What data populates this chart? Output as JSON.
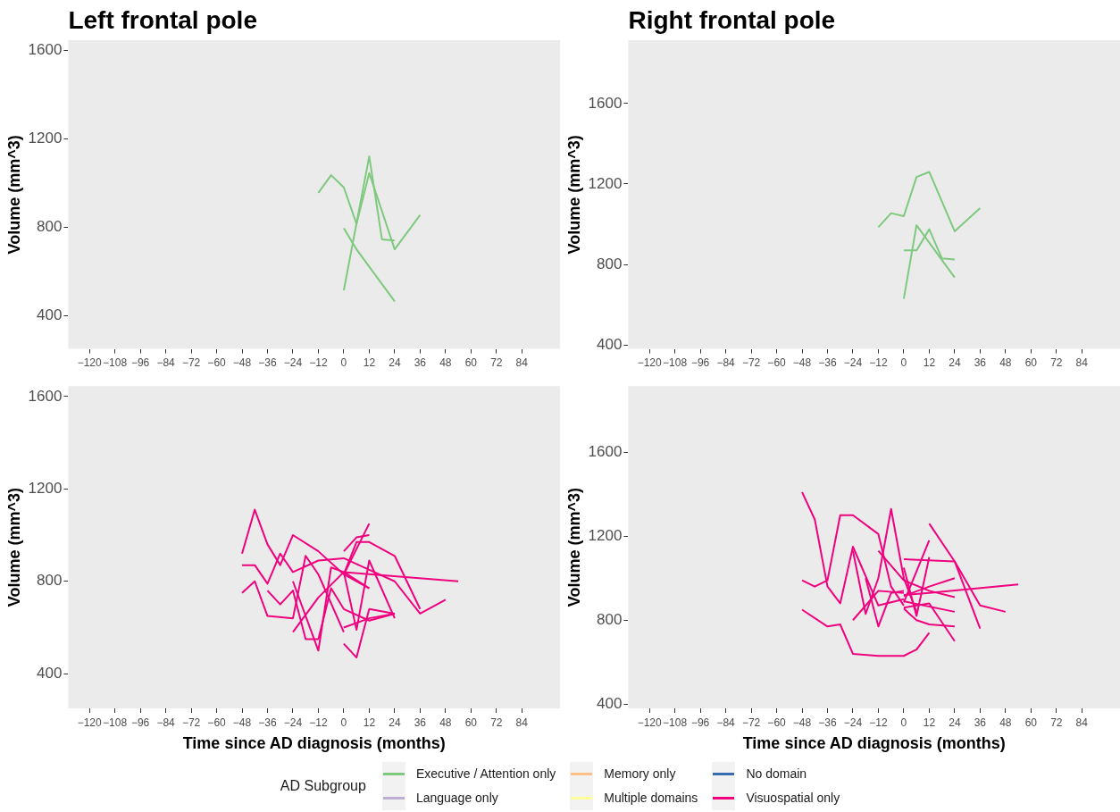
{
  "chart_data": [
    {
      "type": "line",
      "title": "Left frontal pole",
      "ylabel": "Volume (mm^3)",
      "legend": "bottom",
      "legend_title": "AD Subgroup",
      "xlim": [
        -130,
        102
      ],
      "xticks": [
        {
          "value": -120,
          "label": "−120"
        },
        {
          "value": -108,
          "label": "−108"
        },
        {
          "value": -96,
          "label": "−96"
        },
        {
          "value": -84,
          "label": "−84"
        },
        {
          "value": -72,
          "label": "−72"
        },
        {
          "value": -60,
          "label": "−60"
        },
        {
          "value": -48,
          "label": "−48"
        },
        {
          "value": -36,
          "label": "−36"
        },
        {
          "value": -24,
          "label": "−24"
        },
        {
          "value": -12,
          "label": "−12"
        },
        0,
        12,
        24,
        36,
        48,
        60,
        72,
        84
      ],
      "ylim": [
        250,
        1645
      ],
      "yticks": [
        400,
        800,
        1200,
        1600
      ],
      "series": [
        {
          "name": "Executive / Attention only",
          "color": "#7fc97f",
          "x": [
            -12,
            -6,
            0,
            6,
            12,
            24,
            36
          ],
          "values": [
            955,
            1035,
            980,
            815,
            1045,
            700,
            855
          ]
        },
        {
          "color": "#7fc97f",
          "x": [
            0,
            12,
            18,
            24
          ],
          "values": [
            515,
            1120,
            745,
            740
          ]
        },
        {
          "color": "#7fc97f",
          "x": [
            0,
            6,
            24
          ],
          "values": [
            795,
            700,
            465
          ]
        },
        {
          "name": "Language only",
          "color": "#beaed4"
        },
        {
          "name": "Memory only",
          "color": "#fdc086"
        },
        {
          "name": "Multiple domains",
          "color": "#ffff99"
        },
        {
          "name": "No domain",
          "color": "#386cb0"
        }
      ]
    },
    {
      "type": "line",
      "title": "Right frontal pole",
      "ylabel": "Volume (mm^3)",
      "xlim": [
        -130,
        102
      ],
      "xticks": [
        {
          "value": -120,
          "label": "−120"
        },
        {
          "value": -108,
          "label": "−108"
        },
        {
          "value": -96,
          "label": "−96"
        },
        {
          "value": -84,
          "label": "−84"
        },
        {
          "value": -72,
          "label": "−72"
        },
        {
          "value": -60,
          "label": "−60"
        },
        {
          "value": -48,
          "label": "−48"
        },
        {
          "value": -36,
          "label": "−36"
        },
        {
          "value": -24,
          "label": "−24"
        },
        {
          "value": -12,
          "label": "−12"
        },
        0,
        12,
        24,
        36,
        48,
        60,
        72,
        84
      ],
      "ylim": [
        380,
        1915
      ],
      "yticks": [
        400,
        800,
        1200,
        1600
      ],
      "series": [
        {
          "color": "#7fc97f",
          "x": [
            -12,
            -6,
            0,
            6,
            12,
            24,
            36
          ],
          "values": [
            985,
            1055,
            1040,
            1235,
            1260,
            965,
            1080
          ]
        },
        {
          "color": "#7fc97f",
          "x": [
            0,
            6,
            24
          ],
          "values": [
            630,
            995,
            735
          ]
        },
        {
          "color": "#7fc97f",
          "x": [
            0,
            6,
            12,
            18,
            24
          ],
          "values": [
            870,
            870,
            975,
            830,
            825
          ]
        }
      ]
    },
    {
      "type": "line",
      "xlabel": "Time since AD diagnosis (months)",
      "ylabel": "Volume (mm^3)",
      "xlim": [
        -130,
        102
      ],
      "xticks": [
        {
          "value": -120,
          "label": "−120"
        },
        {
          "value": -108,
          "label": "−108"
        },
        {
          "value": -96,
          "label": "−96"
        },
        {
          "value": -84,
          "label": "−84"
        },
        {
          "value": -72,
          "label": "−72"
        },
        {
          "value": -60,
          "label": "−60"
        },
        {
          "value": -48,
          "label": "−48"
        },
        {
          "value": -36,
          "label": "−36"
        },
        {
          "value": -24,
          "label": "−24"
        },
        {
          "value": -12,
          "label": "−12"
        },
        0,
        12,
        24,
        36,
        48,
        60,
        72,
        84
      ],
      "ylim": [
        250,
        1645
      ],
      "yticks": [
        400,
        800,
        1200,
        1600
      ],
      "series": [
        {
          "name": "Visuospatial only",
          "color": "#f0027f",
          "x": [
            -48,
            -42,
            -36,
            -30,
            -24,
            -12,
            0,
            12
          ],
          "values": [
            920,
            1110,
            960,
            870,
            1000,
            930,
            830,
            770
          ]
        },
        {
          "color": "#f0027f",
          "x": [
            -48,
            -42,
            -36,
            -30,
            -24,
            -12,
            0,
            12,
            24,
            36,
            48
          ],
          "values": [
            870,
            870,
            790,
            920,
            840,
            890,
            900,
            850,
            800,
            660,
            720
          ]
        },
        {
          "color": "#f0027f",
          "x": [
            -48,
            -42,
            -36,
            -24,
            -18,
            -12,
            0
          ],
          "values": [
            750,
            800,
            650,
            640,
            910,
            830,
            580
          ]
        },
        {
          "color": "#f0027f",
          "x": [
            -36,
            -30,
            -24,
            -18,
            -12,
            -6,
            0,
            12,
            24
          ],
          "values": [
            760,
            700,
            760,
            550,
            550,
            770,
            680,
            630,
            660
          ]
        },
        {
          "color": "#f0027f",
          "x": [
            -24,
            -12,
            -6,
            0,
            12
          ],
          "values": [
            800,
            500,
            860,
            840,
            770
          ]
        },
        {
          "color": "#f0027f",
          "x": [
            -24,
            -12,
            0
          ],
          "values": [
            580,
            730,
            840
          ]
        },
        {
          "color": "#f0027f",
          "x": [
            0,
            6,
            12
          ],
          "values": [
            930,
            990,
            1000
          ]
        },
        {
          "color": "#f0027f",
          "x": [
            0,
            6,
            12,
            24
          ],
          "values": [
            530,
            470,
            680,
            660
          ]
        },
        {
          "color": "#f0027f",
          "x": [
            0,
            12,
            24
          ],
          "values": [
            600,
            640,
            660
          ]
        },
        {
          "color": "#f0027f",
          "x": [
            0,
            12
          ],
          "values": [
            830,
            1050
          ]
        },
        {
          "color": "#f0027f",
          "x": [
            0,
            6,
            12,
            24,
            36
          ],
          "values": [
            830,
            970,
            970,
            910,
            680
          ]
        },
        {
          "color": "#f0027f",
          "x": [
            0,
            54
          ],
          "values": [
            840,
            800
          ]
        },
        {
          "color": "#f0027f",
          "x": [
            0,
            6,
            12,
            24
          ],
          "values": [
            840,
            590,
            890,
            640
          ]
        }
      ]
    },
    {
      "type": "line",
      "xlabel": "Time since AD diagnosis (months)",
      "ylabel": "Volume (mm^3)",
      "xlim": [
        -130,
        102
      ],
      "xticks": [
        {
          "value": -120,
          "label": "−120"
        },
        {
          "value": -108,
          "label": "−108"
        },
        {
          "value": -96,
          "label": "−96"
        },
        {
          "value": -84,
          "label": "−84"
        },
        {
          "value": -72,
          "label": "−72"
        },
        {
          "value": -60,
          "label": "−60"
        },
        {
          "value": -48,
          "label": "−48"
        },
        {
          "value": -36,
          "label": "−36"
        },
        {
          "value": -24,
          "label": "−24"
        },
        {
          "value": -12,
          "label": "−12"
        },
        0,
        12,
        24,
        36,
        48,
        60,
        72,
        84
      ],
      "ylim": [
        380,
        1915
      ],
      "yticks": [
        400,
        800,
        1200,
        1600
      ],
      "series": [
        {
          "color": "#f0027f",
          "x": [
            -48,
            -42,
            -36,
            -30,
            -24,
            -12,
            0
          ],
          "values": [
            1410,
            1280,
            960,
            880,
            1150,
            870,
            900
          ]
        },
        {
          "color": "#f0027f",
          "x": [
            -48,
            -42,
            -36,
            -30,
            -24,
            -12,
            -6,
            0
          ],
          "values": [
            990,
            960,
            990,
            1300,
            1300,
            1210,
            960,
            870
          ]
        },
        {
          "color": "#f0027f",
          "x": [
            -48,
            -36,
            -30,
            -24,
            -12,
            0,
            6,
            12
          ],
          "values": [
            850,
            770,
            780,
            640,
            630,
            630,
            660,
            740
          ]
        },
        {
          "color": "#f0027f",
          "x": [
            -24,
            -18,
            -12,
            -6,
            0,
            6
          ],
          "values": [
            1130,
            830,
            1000,
            1330,
            1000,
            840
          ]
        },
        {
          "color": "#f0027f",
          "x": [
            -24,
            -12,
            0
          ],
          "values": [
            800,
            940,
            930
          ]
        },
        {
          "color": "#f0027f",
          "x": [
            -18,
            -12,
            -6,
            0
          ],
          "values": [
            1000,
            770,
            930,
            940
          ]
        },
        {
          "color": "#f0027f",
          "x": [
            -12,
            0,
            12,
            24
          ],
          "values": [
            1130,
            990,
            940,
            910
          ]
        },
        {
          "color": "#f0027f",
          "x": [
            0,
            24,
            36
          ],
          "values": [
            1090,
            1080,
            760
          ]
        },
        {
          "color": "#f0027f",
          "x": [
            12,
            24,
            36,
            48
          ],
          "values": [
            1260,
            1080,
            870,
            840
          ]
        },
        {
          "color": "#f0027f",
          "x": [
            0,
            12
          ],
          "values": [
            885,
            1180
          ]
        },
        {
          "color": "#f0027f",
          "x": [
            0,
            12,
            54
          ],
          "values": [
            920,
            930,
            970
          ]
        },
        {
          "color": "#f0027f",
          "x": [
            0,
            6,
            12,
            24
          ],
          "values": [
            855,
            800,
            780,
            770
          ]
        },
        {
          "color": "#f0027f",
          "x": [
            0,
            12,
            24
          ],
          "values": [
            915,
            960,
            1000
          ]
        },
        {
          "color": "#f0027f",
          "x": [
            0,
            24
          ],
          "values": [
            890,
            840
          ]
        },
        {
          "color": "#f0027f",
          "x": [
            0,
            12,
            24
          ],
          "values": [
            860,
            880,
            700
          ]
        },
        {
          "color": "#f0027f",
          "x": [
            0,
            6,
            12
          ],
          "values": [
            1050,
            820,
            1100
          ]
        }
      ]
    }
  ]
}
